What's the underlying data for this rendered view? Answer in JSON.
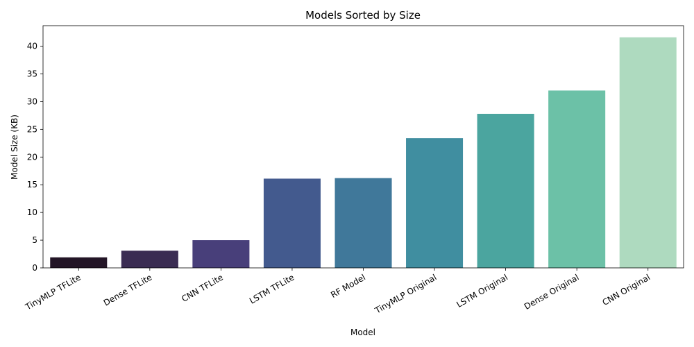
{
  "chart_data": {
    "type": "bar",
    "title": "Models Sorted by Size",
    "xlabel": "Model",
    "ylabel": "Model Size (KB)",
    "categories": [
      "TinyMLP TFLite",
      "Dense TFLite",
      "CNN TFLite",
      "LSTM TFLite",
      "RF Model",
      "TinyMLP Original",
      "LSTM Original",
      "Dense Original",
      "CNN Original"
    ],
    "values": [
      1.9,
      3.1,
      5.0,
      16.1,
      16.2,
      23.4,
      27.8,
      32.0,
      41.6
    ],
    "colors": [
      "#231526",
      "#3a2c52",
      "#483f7a",
      "#435a8e",
      "#40789a",
      "#408ea0",
      "#4ba59f",
      "#6cc1a7",
      "#aedabf"
    ],
    "ylim": [
      0,
      43.7
    ],
    "yticks": [
      0,
      5,
      10,
      15,
      20,
      25,
      30,
      35,
      40
    ],
    "grid": false,
    "legend": "none"
  }
}
